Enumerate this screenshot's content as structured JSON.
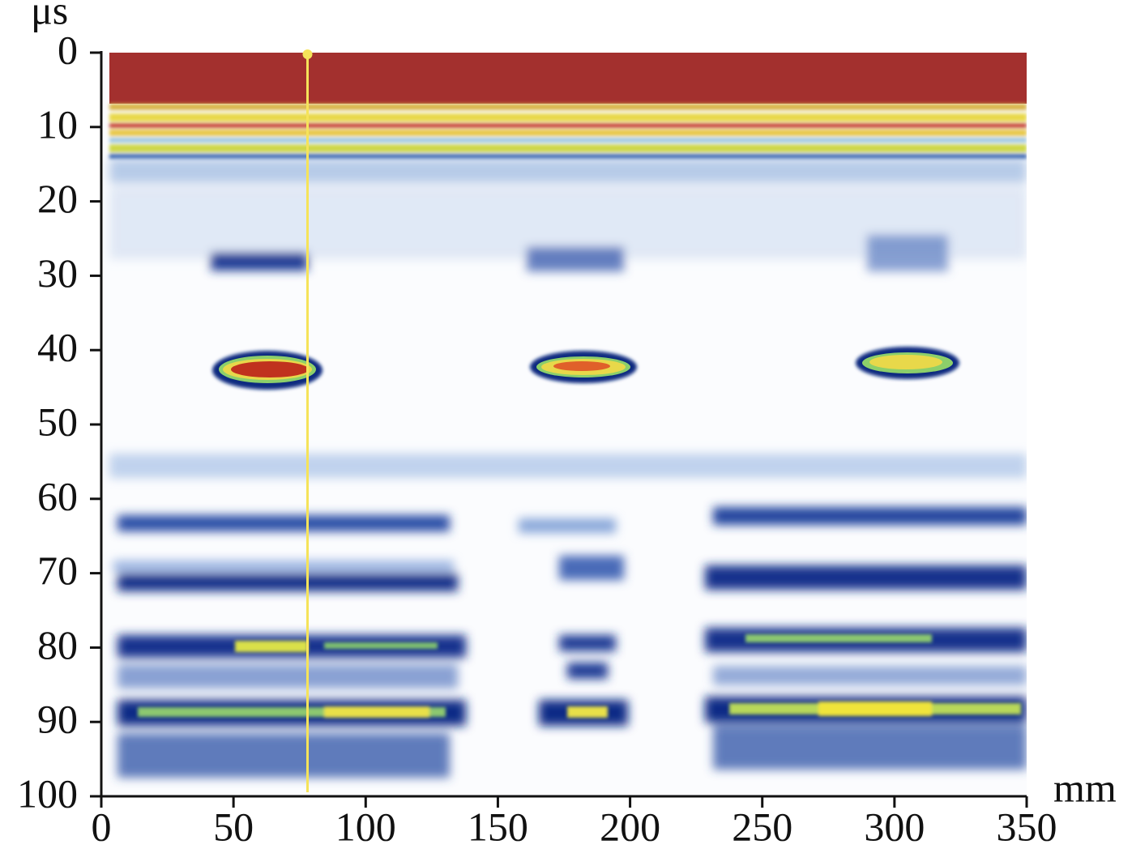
{
  "chart_data": {
    "type": "bscan",
    "x_label": "mm",
    "y_label": "μs",
    "xlim": [
      0,
      350
    ],
    "xticks": [
      0,
      50,
      100,
      150,
      200,
      250,
      300,
      350
    ],
    "ylim": [
      0,
      100
    ],
    "yticks": [
      0,
      10,
      20,
      30,
      40,
      50,
      60,
      70,
      80,
      90,
      100
    ],
    "y_inverted": true,
    "cursor_x": 78,
    "cursor_color": "#f5e35a"
  }
}
